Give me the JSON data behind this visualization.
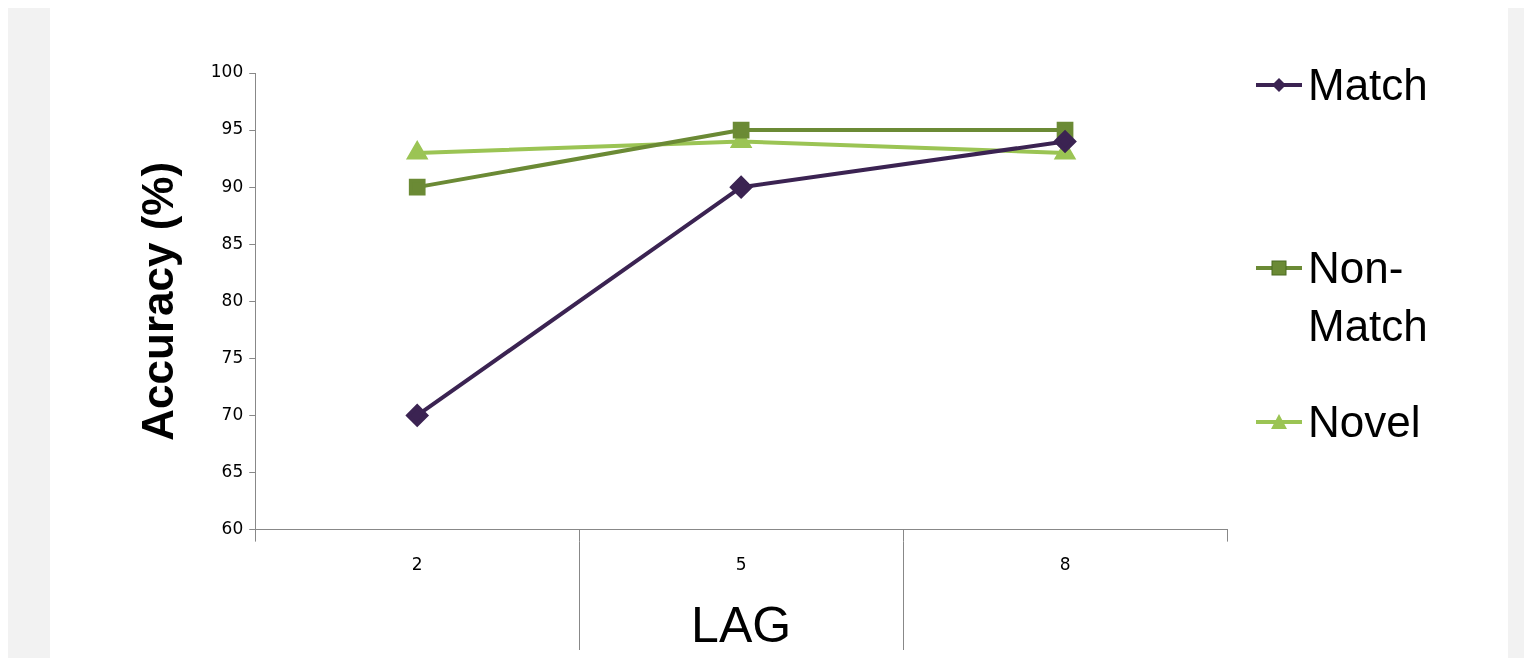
{
  "chart_data": {
    "type": "line",
    "xlabel": "LAG",
    "ylabel": "Accuracy (%)",
    "categories": [
      "2",
      "5",
      "8"
    ],
    "ylim": [
      60,
      100
    ],
    "yticks": [
      60,
      65,
      70,
      75,
      80,
      85,
      90,
      95,
      100
    ],
    "grid": false,
    "legend": "right",
    "line_style": "solid",
    "series": [
      {
        "name": "Match",
        "color": "#3b2352",
        "marker": "diamond",
        "values": [
          70,
          90,
          94
        ]
      },
      {
        "name": "Non-Match",
        "color": "#6b8a35",
        "marker": "square",
        "values": [
          90,
          95,
          95
        ]
      },
      {
        "name": "Novel",
        "color": "#9bc454",
        "marker": "triangle",
        "values": [
          93,
          94,
          93
        ]
      }
    ]
  }
}
